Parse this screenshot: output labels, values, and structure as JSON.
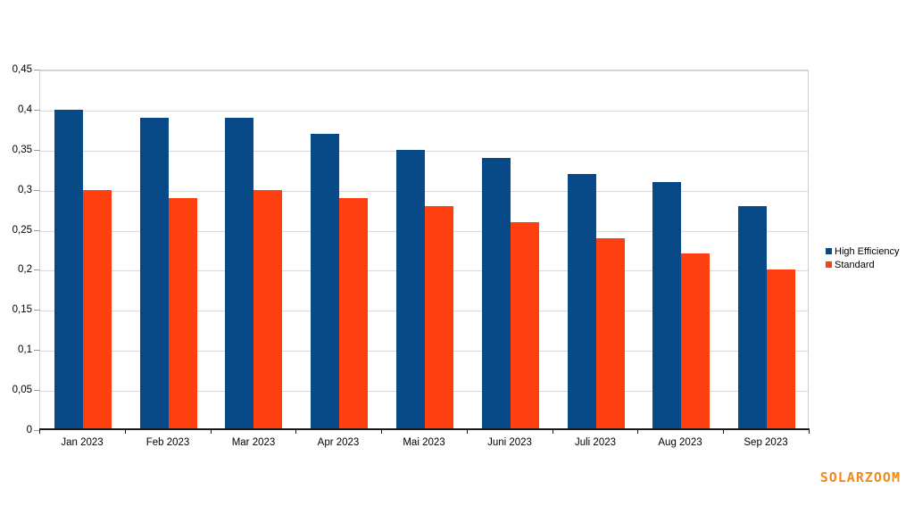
{
  "watermark": {
    "text": "SOLARZOOM",
    "color": "#ee8a1e"
  },
  "chart_data": {
    "type": "bar",
    "title": "",
    "xlabel": "",
    "ylabel": "",
    "categories": [
      "Jan 2023",
      "Feb 2023",
      "Mar 2023",
      "Apr 2023",
      "Mai 2023",
      "Juni 2023",
      "Juli 2023",
      "Aug 2023",
      "Sep 2023"
    ],
    "series": [
      {
        "name": "High Efficiency",
        "color": "#074a87",
        "values": [
          0.4,
          0.39,
          0.39,
          0.37,
          0.35,
          0.34,
          0.32,
          0.31,
          0.28
        ]
      },
      {
        "name": "Standard",
        "color": "#fe4010",
        "values": [
          0.3,
          0.29,
          0.3,
          0.29,
          0.28,
          0.26,
          0.24,
          0.22,
          0.2
        ]
      }
    ],
    "ylim": [
      0,
      0.45
    ],
    "ytick_step": 0.05,
    "ytick_labels": [
      "0",
      "0,05",
      "0,1",
      "0,15",
      "0,2",
      "0,25",
      "0,3",
      "0,35",
      "0,4",
      "0,45"
    ],
    "decimal_separator": ",",
    "grid": true,
    "legend_position": "right"
  }
}
